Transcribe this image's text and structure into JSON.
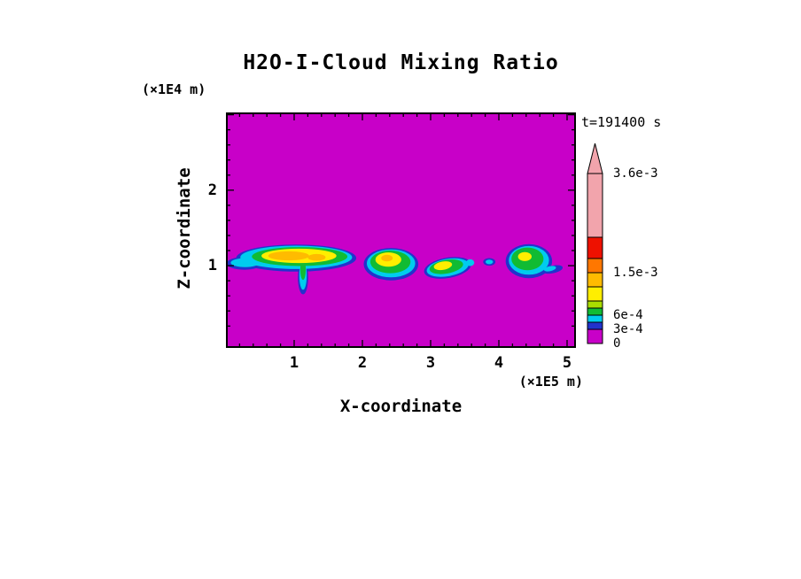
{
  "chart_data": {
    "type": "heatmap",
    "title": "H2O-I-Cloud Mixing Ratio",
    "xlabel": "X-coordinate",
    "ylabel": "Z-coordinate",
    "x_axis_units": "(×1E5 m)",
    "y_axis_units": "(×1E4 m)",
    "time_annotation": "t=191400 s",
    "xlim": [
      0,
      5.13
    ],
    "ylim": [
      -0.09,
      3.03
    ],
    "x_ticks": [
      1,
      2,
      3,
      4,
      5
    ],
    "y_ticks": [
      1,
      2
    ],
    "minor_tick_step": 0.2,
    "background_color": "#C800C8",
    "frame_color": "#000000",
    "colorbar": {
      "max_value": 0.0036,
      "tip_color": "#F2A4AC",
      "labels": [
        {
          "text": "3.6e-3",
          "value": 0.0036
        },
        {
          "text": "1.5e-3",
          "value": 0.0015
        },
        {
          "text": "6e-4",
          "value": 0.0006
        },
        {
          "text": "3e-4",
          "value": 0.0003
        },
        {
          "text": "0",
          "value": 0
        }
      ],
      "cells_bottom_to_top": [
        {
          "color": "#C800C8",
          "h": 16,
          "v0": 0,
          "v1": 0.0003
        },
        {
          "color": "#2233CC",
          "h": 8,
          "v0": 0.0003,
          "v1": 0.00045
        },
        {
          "color": "#00CCEE",
          "h": 8,
          "v0": 0.00045,
          "v1": 0.0006
        },
        {
          "color": "#11BB33",
          "h": 8,
          "v0": 0.0006,
          "v1": 0.00075
        },
        {
          "color": "#AADD00",
          "h": 8,
          "v0": 0.00075,
          "v1": 0.0009
        },
        {
          "color": "#FFEE00",
          "h": 16,
          "v0": 0.0009,
          "v1": 0.0012
        },
        {
          "color": "#FFBB00",
          "h": 16,
          "v0": 0.0012,
          "v1": 0.0015
        },
        {
          "color": "#FF7700",
          "h": 16,
          "v0": 0.0015,
          "v1": 0.0018
        },
        {
          "color": "#EE1100",
          "h": 24,
          "v0": 0.0018,
          "v1": 0.00225
        },
        {
          "color": "#F2A4AC",
          "h": 72,
          "v0": 0.00225,
          "v1": 0.0036
        }
      ]
    },
    "clouds": [
      {
        "name": "cloud-1",
        "layers": [
          {
            "x": 0.27,
            "z": 1.03,
            "rx": 0.26,
            "rz": 0.085,
            "c": "#2233CC"
          },
          {
            "x": 1.03,
            "z": 1.1,
            "rx": 0.88,
            "rz": 0.18,
            "c": "#2233CC"
          },
          {
            "x": 1.13,
            "z": 0.84,
            "rx": 0.075,
            "rz": 0.22,
            "c": "#2233CC"
          },
          {
            "x": 0.28,
            "z": 1.04,
            "rx": 0.21,
            "rz": 0.06,
            "c": "#00CCEE"
          },
          {
            "x": 1.03,
            "z": 1.11,
            "rx": 0.82,
            "rz": 0.155,
            "c": "#00CCEE"
          },
          {
            "x": 1.13,
            "z": 0.87,
            "rx": 0.055,
            "rz": 0.19,
            "c": "#00CCEE"
          },
          {
            "x": 1.08,
            "z": 1.12,
            "rx": 0.7,
            "rz": 0.125,
            "c": "#11BB33"
          },
          {
            "x": 1.13,
            "z": 0.95,
            "rx": 0.04,
            "rz": 0.14,
            "c": "#11BB33"
          },
          {
            "x": 1.07,
            "z": 1.13,
            "rx": 0.55,
            "rz": 0.095,
            "c": "#FFEE00"
          },
          {
            "x": 0.92,
            "z": 1.13,
            "rx": 0.3,
            "rz": 0.06,
            "c": "#FFBB00"
          },
          {
            "x": 1.33,
            "z": 1.11,
            "rx": 0.13,
            "rz": 0.045,
            "c": "#FFBB00"
          }
        ]
      },
      {
        "name": "cloud-2",
        "layers": [
          {
            "x": 2.42,
            "z": 1.02,
            "rx": 0.4,
            "rz": 0.215,
            "c": "#2233CC"
          },
          {
            "x": 2.42,
            "z": 1.03,
            "rx": 0.355,
            "rz": 0.185,
            "c": "#00CCEE"
          },
          {
            "x": 2.41,
            "z": 1.05,
            "rx": 0.295,
            "rz": 0.15,
            "c": "#11BB33"
          },
          {
            "x": 2.38,
            "z": 1.08,
            "rx": 0.19,
            "rz": 0.095,
            "c": "#FFEE00"
          },
          {
            "x": 2.36,
            "z": 1.1,
            "rx": 0.085,
            "rz": 0.045,
            "c": "#FFBB00"
          }
        ]
      },
      {
        "name": "cloud-3",
        "layers": [
          {
            "x": 3.25,
            "z": 0.97,
            "rx": 0.35,
            "rz": 0.135,
            "rot": -10,
            "c": "#2233CC"
          },
          {
            "x": 3.25,
            "z": 0.975,
            "rx": 0.31,
            "rz": 0.115,
            "rot": -10,
            "c": "#00CCEE"
          },
          {
            "x": 3.23,
            "z": 0.985,
            "rx": 0.25,
            "rz": 0.09,
            "rot": -10,
            "c": "#11BB33"
          },
          {
            "x": 3.18,
            "z": 1.0,
            "rx": 0.135,
            "rz": 0.055,
            "rot": -10,
            "c": "#FFEE00"
          },
          {
            "x": 3.58,
            "z": 1.04,
            "rx": 0.06,
            "rz": 0.045,
            "c": "#00CCEE"
          }
        ]
      },
      {
        "name": "cloud-4",
        "layers": [
          {
            "x": 3.86,
            "z": 1.05,
            "rx": 0.09,
            "rz": 0.05,
            "c": "#2233CC"
          },
          {
            "x": 3.86,
            "z": 1.05,
            "rx": 0.055,
            "rz": 0.03,
            "c": "#00CCEE"
          }
        ]
      },
      {
        "name": "cloud-5",
        "layers": [
          {
            "x": 4.44,
            "z": 1.06,
            "rx": 0.34,
            "rz": 0.225,
            "c": "#2233CC"
          },
          {
            "x": 4.79,
            "z": 0.95,
            "rx": 0.15,
            "rz": 0.05,
            "rot": -12,
            "c": "#2233CC"
          },
          {
            "x": 4.44,
            "z": 1.07,
            "rx": 0.295,
            "rz": 0.19,
            "c": "#00CCEE"
          },
          {
            "x": 4.75,
            "z": 0.96,
            "rx": 0.09,
            "rz": 0.033,
            "rot": -12,
            "c": "#00CCEE"
          },
          {
            "x": 4.42,
            "z": 1.09,
            "rx": 0.235,
            "rz": 0.15,
            "c": "#11BB33"
          },
          {
            "x": 4.38,
            "z": 1.12,
            "rx": 0.1,
            "rz": 0.06,
            "c": "#FFEE00"
          }
        ]
      }
    ]
  }
}
